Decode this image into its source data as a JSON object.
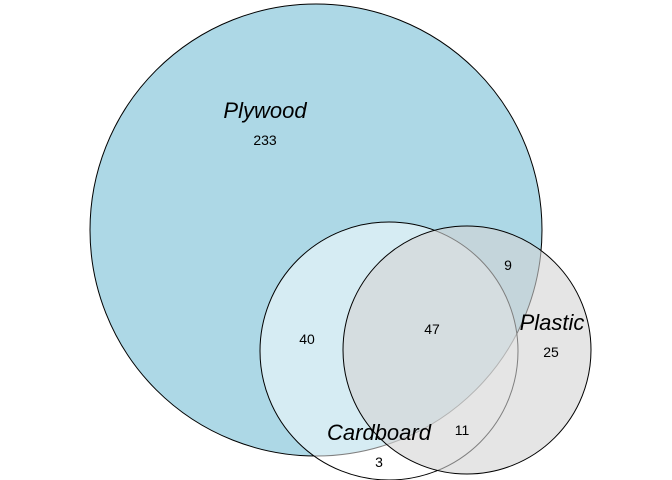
{
  "sets": [
    {
      "name": "Plywood",
      "color": "#add8e6"
    },
    {
      "name": "Cardboard",
      "color": "#ffffff"
    },
    {
      "name": "Plastic",
      "color": "#d3d3d3"
    }
  ],
  "regions": {
    "plywood_only": "233",
    "plywood_cardboard": "40",
    "plywood_plastic": "9",
    "all_three": "47",
    "plastic_only": "25",
    "cardboard_plastic": "11",
    "cardboard_only": "3"
  }
}
